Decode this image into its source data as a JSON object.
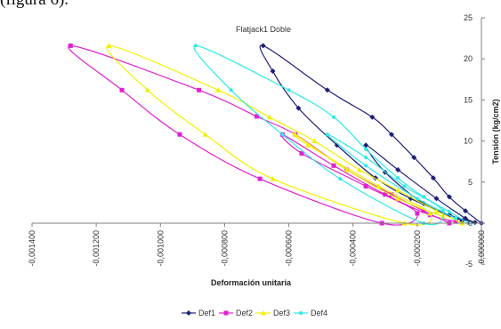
{
  "page": {
    "caption": "(figura 6)."
  },
  "chart_data": {
    "type": "scatter",
    "title": "Flatjack1 Doble",
    "xlabel": "Deformación unitaria",
    "ylabel": "Tensión (kg/cm2)",
    "xlim": [
      -0.0014,
      0.0
    ],
    "ylim": [
      -5,
      25
    ],
    "x_ticks": [
      "-0,001400",
      "-0,001200",
      "-0,001000",
      "-0,000800",
      "-0,000600",
      "-0,000400",
      "-0,000200",
      "0,000000"
    ],
    "y_ticks": [
      "-5",
      "0",
      "5",
      "10",
      "15",
      "20",
      "25"
    ],
    "x_tick_values": [
      -0.0014,
      -0.0012,
      -0.001,
      -0.0008,
      -0.0006,
      -0.0004,
      -0.0002,
      0.0
    ],
    "y_tick_values": [
      -5,
      0,
      5,
      10,
      15,
      20,
      25
    ],
    "grid": false,
    "legend_position": "bottom",
    "series": [
      {
        "name": "Def1",
        "color": "#1f1f78",
        "marker": "diamond",
        "points": [
          [
            0,
            0
          ],
          [
            -5e-05,
            1.5
          ],
          [
            -0.0001,
            3.2
          ],
          [
            -0.00015,
            5.5
          ],
          [
            -0.00021,
            8.0
          ],
          [
            -0.00028,
            10.8
          ],
          [
            -0.00034,
            12.9
          ],
          [
            -0.00048,
            16.2
          ],
          [
            -0.00068,
            21.6
          ],
          [
            -0.00065,
            18.5
          ],
          [
            -0.00057,
            14.0
          ],
          [
            -0.00045,
            9.5
          ],
          [
            -0.00033,
            5.5
          ],
          [
            -0.00022,
            3.0
          ],
          [
            -0.0001,
            1.0
          ],
          [
            -2e-05,
            0.1
          ],
          [
            -5e-05,
            0.6
          ],
          [
            -0.00014,
            3.0
          ],
          [
            -0.00026,
            6.5
          ],
          [
            -0.00036,
            9.5
          ],
          [
            -0.0003,
            6.2
          ],
          [
            -0.00018,
            2.4
          ],
          [
            -6e-05,
            0.3
          ]
        ]
      },
      {
        "name": "Def2",
        "color": "#e020d0",
        "marker": "square",
        "points": [
          [
            -0.0001,
            0
          ],
          [
            -0.00018,
            1.5
          ],
          [
            -0.00028,
            3.5
          ],
          [
            -0.00042,
            6.5
          ],
          [
            -0.00058,
            10.8
          ],
          [
            -0.0007,
            13.0
          ],
          [
            -0.00088,
            16.2
          ],
          [
            -0.00128,
            21.6
          ],
          [
            -0.00112,
            16.2
          ],
          [
            -0.00094,
            10.8
          ],
          [
            -0.00069,
            5.4
          ],
          [
            -0.00031,
            0
          ],
          [
            -0.0002,
            1.2
          ],
          [
            -0.00036,
            4.5
          ],
          [
            -0.00056,
            8.5
          ],
          [
            -0.00062,
            10.8
          ],
          [
            -0.00046,
            7.0
          ],
          [
            -0.0003,
            3.5
          ],
          [
            -0.00016,
            1.0
          ],
          [
            -8e-05,
            0.2
          ]
        ]
      },
      {
        "name": "Def3",
        "color": "#f0f000",
        "marker": "triangle",
        "points": [
          [
            -6e-05,
            0
          ],
          [
            -0.00014,
            1.5
          ],
          [
            -0.00026,
            4.0
          ],
          [
            -0.00038,
            6.5
          ],
          [
            -0.00052,
            10.0
          ],
          [
            -0.00066,
            12.9
          ],
          [
            -0.00082,
            16.2
          ],
          [
            -0.00116,
            21.6
          ],
          [
            -0.00104,
            16.2
          ],
          [
            -0.00086,
            10.8
          ],
          [
            -0.00065,
            5.4
          ],
          [
            -0.00024,
            0
          ],
          [
            -0.00016,
            1.2
          ],
          [
            -0.00032,
            4.5
          ],
          [
            -0.00054,
            9.5
          ],
          [
            -0.00058,
            10.8
          ],
          [
            -0.00042,
            6.5
          ],
          [
            -0.00026,
            3.0
          ],
          [
            -0.00012,
            0.8
          ]
        ]
      },
      {
        "name": "Def4",
        "color": "#30e8e8",
        "marker": "circle",
        "points": [
          [
            -4e-05,
            0
          ],
          [
            -0.0001,
            1.4
          ],
          [
            -0.00018,
            3.2
          ],
          [
            -0.00026,
            5.5
          ],
          [
            -0.00036,
            9.0
          ],
          [
            -0.00046,
            12.9
          ],
          [
            -0.0006,
            16.2
          ],
          [
            -0.00089,
            21.6
          ],
          [
            -0.00078,
            16.2
          ],
          [
            -0.00062,
            10.8
          ],
          [
            -0.00044,
            5.4
          ],
          [
            -0.00018,
            0
          ],
          [
            -0.00012,
            1.5
          ],
          [
            -0.00024,
            4.5
          ],
          [
            -0.00036,
            8.0
          ],
          [
            -0.00048,
            10.8
          ],
          [
            -0.00036,
            7.0
          ],
          [
            -0.0002,
            3.0
          ],
          [
            -8e-05,
            0.6
          ]
        ]
      }
    ]
  }
}
